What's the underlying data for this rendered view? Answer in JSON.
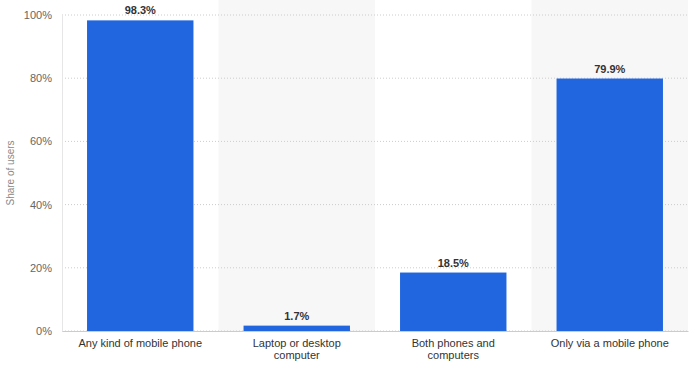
{
  "chart_data": {
    "type": "bar",
    "categories": [
      "Any kind of mobile phone",
      "Laptop or desktop computer",
      "Both phones and computers",
      "Only via a mobile phone"
    ],
    "values": [
      98.3,
      1.7,
      18.5,
      79.9
    ],
    "value_labels": [
      "98.3%",
      "1.7%",
      "18.5%",
      "79.9%"
    ],
    "color": "#2166de",
    "ylabel": "Share of users",
    "ylim": [
      0,
      100
    ],
    "yticks": [
      {
        "value": 0,
        "label": "0%"
      },
      {
        "value": 20,
        "label": "20%"
      },
      {
        "value": 40,
        "label": "40%"
      },
      {
        "value": 60,
        "label": "60%"
      },
      {
        "value": 80,
        "label": "80%"
      },
      {
        "value": 100,
        "label": "100%"
      }
    ],
    "grid": true,
    "data_labels": true
  }
}
